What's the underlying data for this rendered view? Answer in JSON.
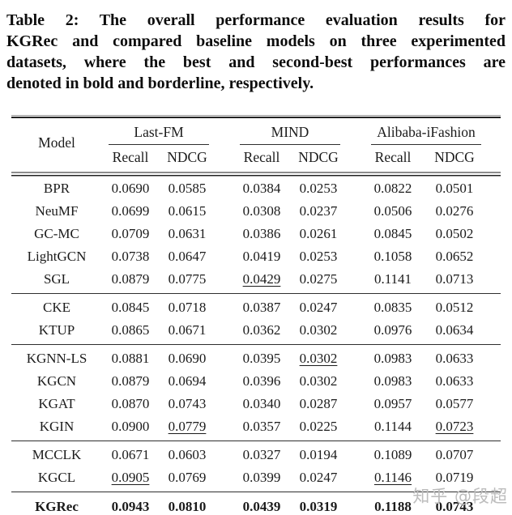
{
  "caption": {
    "lines": [
      "Table 2: The overall performance evaluation results for",
      "KGRec and compared baseline models on three experimented",
      "datasets, where the best and second-best performances are",
      "denoted in bold and borderline, respectively."
    ]
  },
  "table": {
    "model_header": "Model",
    "groups": [
      {
        "label": "Last-FM",
        "sub": [
          "Recall",
          "NDCG"
        ]
      },
      {
        "label": "MIND",
        "sub": [
          "Recall",
          "NDCG"
        ]
      },
      {
        "label": "Alibaba-iFashion",
        "sub": [
          "Recall",
          "NDCG"
        ]
      }
    ],
    "blocks": [
      {
        "rows": [
          {
            "model": "BPR",
            "values": [
              "0.0690",
              "0.0585",
              "0.0384",
              "0.0253",
              "0.0822",
              "0.0501"
            ],
            "underline": []
          },
          {
            "model": "NeuMF",
            "values": [
              "0.0699",
              "0.0615",
              "0.0308",
              "0.0237",
              "0.0506",
              "0.0276"
            ],
            "underline": []
          },
          {
            "model": "GC-MC",
            "values": [
              "0.0709",
              "0.0631",
              "0.0386",
              "0.0261",
              "0.0845",
              "0.0502"
            ],
            "underline": []
          },
          {
            "model": "LightGCN",
            "values": [
              "0.0738",
              "0.0647",
              "0.0419",
              "0.0253",
              "0.1058",
              "0.0652"
            ],
            "underline": []
          },
          {
            "model": "SGL",
            "values": [
              "0.0879",
              "0.0775",
              "0.0429",
              "0.0275",
              "0.1141",
              "0.0713"
            ],
            "underline": [
              2
            ]
          }
        ]
      },
      {
        "rows": [
          {
            "model": "CKE",
            "values": [
              "0.0845",
              "0.0718",
              "0.0387",
              "0.0247",
              "0.0835",
              "0.0512"
            ],
            "underline": []
          },
          {
            "model": "KTUP",
            "values": [
              "0.0865",
              "0.0671",
              "0.0362",
              "0.0302",
              "0.0976",
              "0.0634"
            ],
            "underline": []
          }
        ]
      },
      {
        "rows": [
          {
            "model": "KGNN-LS",
            "values": [
              "0.0881",
              "0.0690",
              "0.0395",
              "0.0302",
              "0.0983",
              "0.0633"
            ],
            "underline": [
              3
            ]
          },
          {
            "model": "KGCN",
            "values": [
              "0.0879",
              "0.0694",
              "0.0396",
              "0.0302",
              "0.0983",
              "0.0633"
            ],
            "underline": []
          },
          {
            "model": "KGAT",
            "values": [
              "0.0870",
              "0.0743",
              "0.0340",
              "0.0287",
              "0.0957",
              "0.0577"
            ],
            "underline": []
          },
          {
            "model": "KGIN",
            "values": [
              "0.0900",
              "0.0779",
              "0.0357",
              "0.0225",
              "0.1144",
              "0.0723"
            ],
            "underline": [
              1,
              5
            ]
          }
        ]
      },
      {
        "rows": [
          {
            "model": "MCCLK",
            "values": [
              "0.0671",
              "0.0603",
              "0.0327",
              "0.0194",
              "0.1089",
              "0.0707"
            ],
            "underline": []
          },
          {
            "model": "KGCL",
            "values": [
              "0.0905",
              "0.0769",
              "0.0399",
              "0.0247",
              "0.1146",
              "0.0719"
            ],
            "underline": [
              0,
              4
            ]
          }
        ]
      },
      {
        "rows": [
          {
            "model": "KGRec",
            "values": [
              "0.0943",
              "0.0810",
              "0.0439",
              "0.0319",
              "0.1188",
              "0.0743"
            ],
            "underline": [],
            "bold": true
          }
        ]
      }
    ]
  },
  "watermark": {
    "text": "知乎 @段超"
  },
  "colors": {
    "background": "#ffffff",
    "text": "#1b1b1b",
    "rule_dark": "#222222",
    "rule_gray": "#8c8c8c",
    "watermark": "#bdbdbd"
  }
}
